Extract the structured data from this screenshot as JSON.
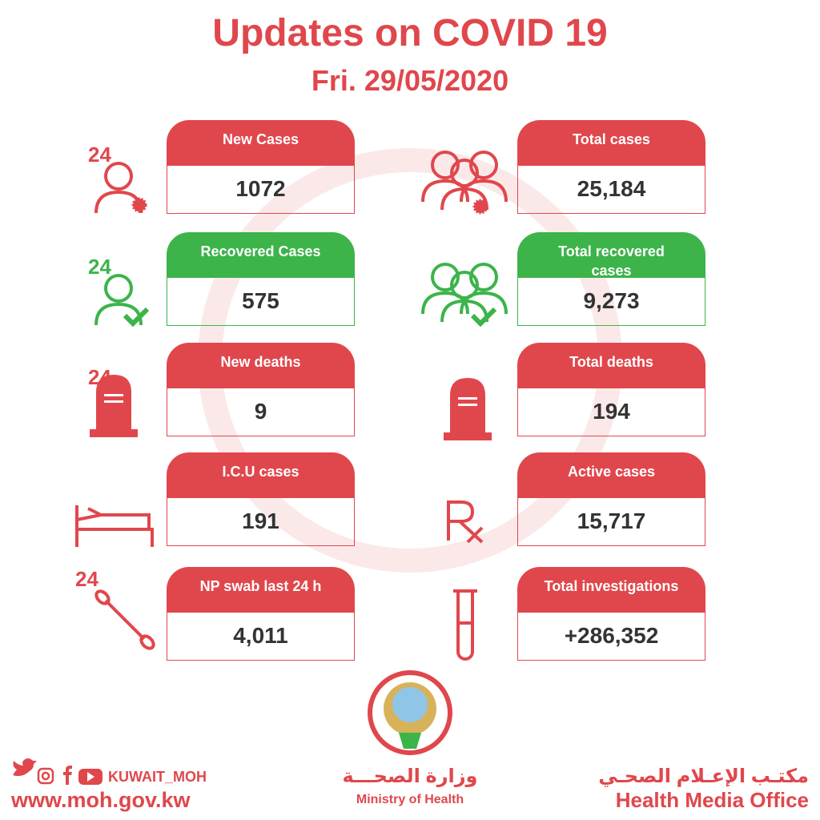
{
  "header": {
    "title": "Updates on COVID 19",
    "date": "Fri. 29/05/2020"
  },
  "rows": [
    {
      "badge": "24",
      "left": {
        "label": "New Cases",
        "value": "1072"
      },
      "right": {
        "label": "Total cases",
        "value": "25,184"
      }
    },
    {
      "badge": "24",
      "left": {
        "label": "Recovered Cases",
        "value": "575"
      },
      "right": {
        "label": "Total recovered cases",
        "value": "9,273"
      }
    },
    {
      "badge": "24",
      "left": {
        "label": "New deaths",
        "value": "9"
      },
      "right": {
        "label": "Total deaths",
        "value": "194"
      }
    },
    {
      "badge": null,
      "left": {
        "label": "I.C.U cases",
        "value": "191"
      },
      "right": {
        "label": "Active cases",
        "value": "15,717"
      }
    },
    {
      "badge": "24",
      "left": {
        "label": "NP swab last 24 h",
        "value": "4,011"
      },
      "right": {
        "label": "Total investigations",
        "value": "+286,352"
      }
    }
  ],
  "footer": {
    "handle": "KUWAIT_MOH",
    "website": "www.moh.gov.kw",
    "ministry_ar": "وزارة الصحـــة",
    "ministry_en": "Ministry of Health",
    "office_ar": "مكتـب الإعـلام الصحـي",
    "office_en": "Health Media Office"
  }
}
